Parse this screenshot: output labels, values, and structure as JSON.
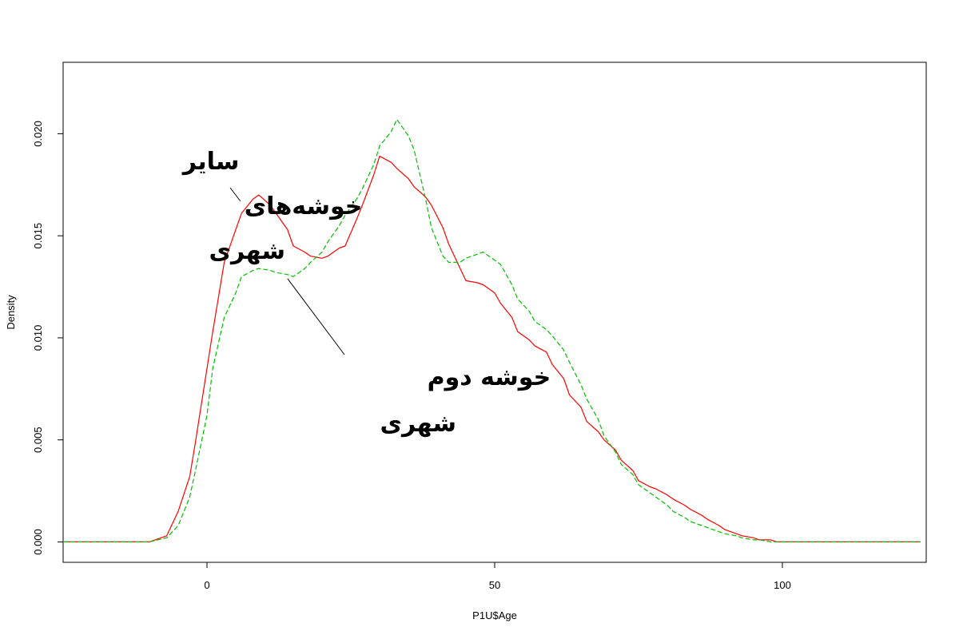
{
  "chart_data": {
    "type": "line",
    "title": "",
    "xlabel": "P1U$Age",
    "ylabel": "Density",
    "xlim": [
      -25,
      125
    ],
    "ylim": [
      -0.001,
      0.0235
    ],
    "x_ticks": [
      0,
      50,
      100
    ],
    "y_ticks": [
      0.0,
      0.005,
      0.01,
      0.015,
      0.02
    ],
    "x_tick_labels": [
      "0",
      "50",
      "100"
    ],
    "y_tick_labels": [
      "0.000",
      "0.005",
      "0.010",
      "0.015",
      "0.020"
    ],
    "grid": false,
    "legend": false,
    "colors": {
      "series_red": "#ff0000",
      "series_green": "#00c000",
      "frame": "#000000",
      "leader": "#000000"
    },
    "series": [
      {
        "color": "#ff0000",
        "line_style": "solid",
        "x": [
          -25,
          -20,
          -15,
          -10,
          -7,
          -5,
          -3,
          -2,
          0,
          1,
          3,
          5,
          6,
          8,
          9,
          11,
          12,
          14,
          15,
          17,
          18,
          20,
          21,
          23,
          24,
          26,
          27,
          29,
          30,
          32,
          33,
          35,
          36,
          38,
          39,
          41,
          42,
          44,
          45,
          47,
          48,
          50,
          51,
          53,
          54,
          56,
          57,
          59,
          60,
          62,
          63,
          65,
          66,
          68,
          69,
          71,
          72,
          74,
          75,
          77,
          78,
          80,
          81,
          83,
          84,
          86,
          87,
          89,
          90,
          92,
          93,
          95,
          96,
          98,
          99,
          101,
          102,
          104,
          105,
          107,
          108,
          110,
          111,
          113,
          114,
          116,
          117,
          119,
          120,
          124
        ],
        "y": [
          0.0,
          0.0,
          0.0,
          0.0,
          0.0003,
          0.0015,
          0.0032,
          0.0049,
          0.0085,
          0.0103,
          0.0137,
          0.0153,
          0.0161,
          0.0168,
          0.017,
          0.0165,
          0.0161,
          0.0153,
          0.0145,
          0.0142,
          0.014,
          0.0139,
          0.014,
          0.0144,
          0.0145,
          0.0158,
          0.0165,
          0.018,
          0.0189,
          0.0186,
          0.0183,
          0.0178,
          0.0174,
          0.0169,
          0.0165,
          0.0154,
          0.0146,
          0.0134,
          0.0128,
          0.0127,
          0.0126,
          0.0122,
          0.0117,
          0.011,
          0.0103,
          0.0099,
          0.0096,
          0.0093,
          0.0087,
          0.008,
          0.0072,
          0.0066,
          0.0059,
          0.0054,
          0.005,
          0.0045,
          0.004,
          0.0035,
          0.003,
          0.0027,
          0.0026,
          0.0023,
          0.0021,
          0.0018,
          0.0016,
          0.0013,
          0.0011,
          0.0008,
          0.0006,
          0.0004,
          0.0003,
          0.0002,
          0.0001,
          0.0001,
          0.0,
          0.0,
          0.0,
          0.0,
          0.0,
          0.0,
          0.0,
          0.0,
          0.0,
          0.0,
          0.0,
          0.0,
          0.0,
          0.0,
          0.0,
          0.0
        ]
      },
      {
        "color": "#00c000",
        "line_style": "dashed",
        "x": [
          -25,
          -20,
          -15,
          -10,
          -7,
          -5,
          -3,
          -2,
          0,
          1,
          3,
          5,
          6,
          8,
          9,
          11,
          12,
          14,
          15,
          17,
          18,
          20,
          21,
          23,
          24,
          26,
          27,
          29,
          30,
          32,
          33,
          35,
          36,
          38,
          39,
          41,
          42,
          44,
          45,
          47,
          48,
          50,
          51,
          53,
          54,
          56,
          57,
          59,
          60,
          62,
          63,
          65,
          66,
          68,
          69,
          71,
          72,
          74,
          75,
          77,
          78,
          80,
          81,
          83,
          84,
          86,
          87,
          89,
          90,
          92,
          93,
          95,
          96,
          98,
          99,
          101,
          102,
          104,
          105,
          107,
          108,
          110,
          111,
          113,
          114,
          116,
          117,
          119,
          120,
          124
        ],
        "y": [
          0.0,
          0.0,
          0.0,
          0.0,
          0.0002,
          0.0008,
          0.0022,
          0.0035,
          0.0062,
          0.0085,
          0.011,
          0.0122,
          0.013,
          0.0133,
          0.0134,
          0.0133,
          0.0132,
          0.0131,
          0.013,
          0.0134,
          0.0137,
          0.0142,
          0.0147,
          0.0155,
          0.016,
          0.0168,
          0.0173,
          0.0185,
          0.0194,
          0.0201,
          0.0207,
          0.0199,
          0.0192,
          0.0168,
          0.0154,
          0.014,
          0.0137,
          0.0137,
          0.0139,
          0.0141,
          0.0142,
          0.0138,
          0.0136,
          0.0126,
          0.0119,
          0.0113,
          0.0108,
          0.0104,
          0.0101,
          0.0094,
          0.0088,
          0.0077,
          0.007,
          0.006,
          0.0052,
          0.0044,
          0.0038,
          0.0033,
          0.0028,
          0.0024,
          0.0022,
          0.0018,
          0.0015,
          0.0012,
          0.001,
          0.0008,
          0.0007,
          0.0005,
          0.0004,
          0.0003,
          0.0002,
          0.0001,
          0.0001,
          0.0,
          0.0,
          0.0,
          0.0,
          0.0,
          0.0,
          0.0,
          0.0,
          0.0,
          0.0,
          0.0,
          0.0,
          0.0,
          0.0,
          0.0,
          0.0,
          0.0
        ]
      }
    ],
    "annotations": [
      {
        "lines": [
          "سایر",
          "خوشه‌های",
          "شهری"
        ],
        "points_to_x": 5.8,
        "points_to_y": 0.0167
      },
      {
        "lines": [
          "خوشه دوم",
          "شهری"
        ],
        "points_to_x": 14,
        "points_to_y": 0.0129
      }
    ]
  }
}
